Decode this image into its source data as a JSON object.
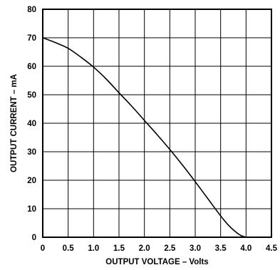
{
  "chart_data": {
    "type": "line",
    "title": "",
    "xlabel": "OUTPUT VOLTAGE – Volts",
    "ylabel": "OUTPUT CURRENT – mA",
    "xlim": [
      0,
      4.5
    ],
    "ylim": [
      0,
      80
    ],
    "x_ticks": [
      0,
      0.5,
      1.0,
      1.5,
      2.0,
      2.5,
      3.0,
      3.5,
      4.0,
      4.5
    ],
    "x_tick_labels": [
      "0",
      "0.5",
      "1.0",
      "1.5",
      "2.0",
      "2.5",
      "3.0",
      "3.5",
      "4.0",
      "4.5"
    ],
    "y_ticks": [
      0,
      10,
      20,
      30,
      40,
      50,
      60,
      70,
      80
    ],
    "y_tick_labels": [
      "0",
      "10",
      "20",
      "30",
      "40",
      "50",
      "60",
      "70",
      "80"
    ],
    "grid": true,
    "legend": "none",
    "series": [
      {
        "x": [
          0,
          0.25,
          0.5,
          0.75,
          1.0,
          1.25,
          1.5,
          1.75,
          2.0,
          2.25,
          2.5,
          2.75,
          3.0,
          3.25,
          3.5,
          3.65,
          3.8,
          3.9,
          4.0
        ],
        "y": [
          70,
          68.3,
          66.3,
          63.2,
          59.7,
          55.5,
          50.7,
          46.0,
          41.0,
          36.0,
          30.8,
          25.3,
          19.5,
          13.5,
          7.5,
          4.3,
          1.8,
          0.6,
          0
        ],
        "color": "#000000"
      }
    ]
  }
}
